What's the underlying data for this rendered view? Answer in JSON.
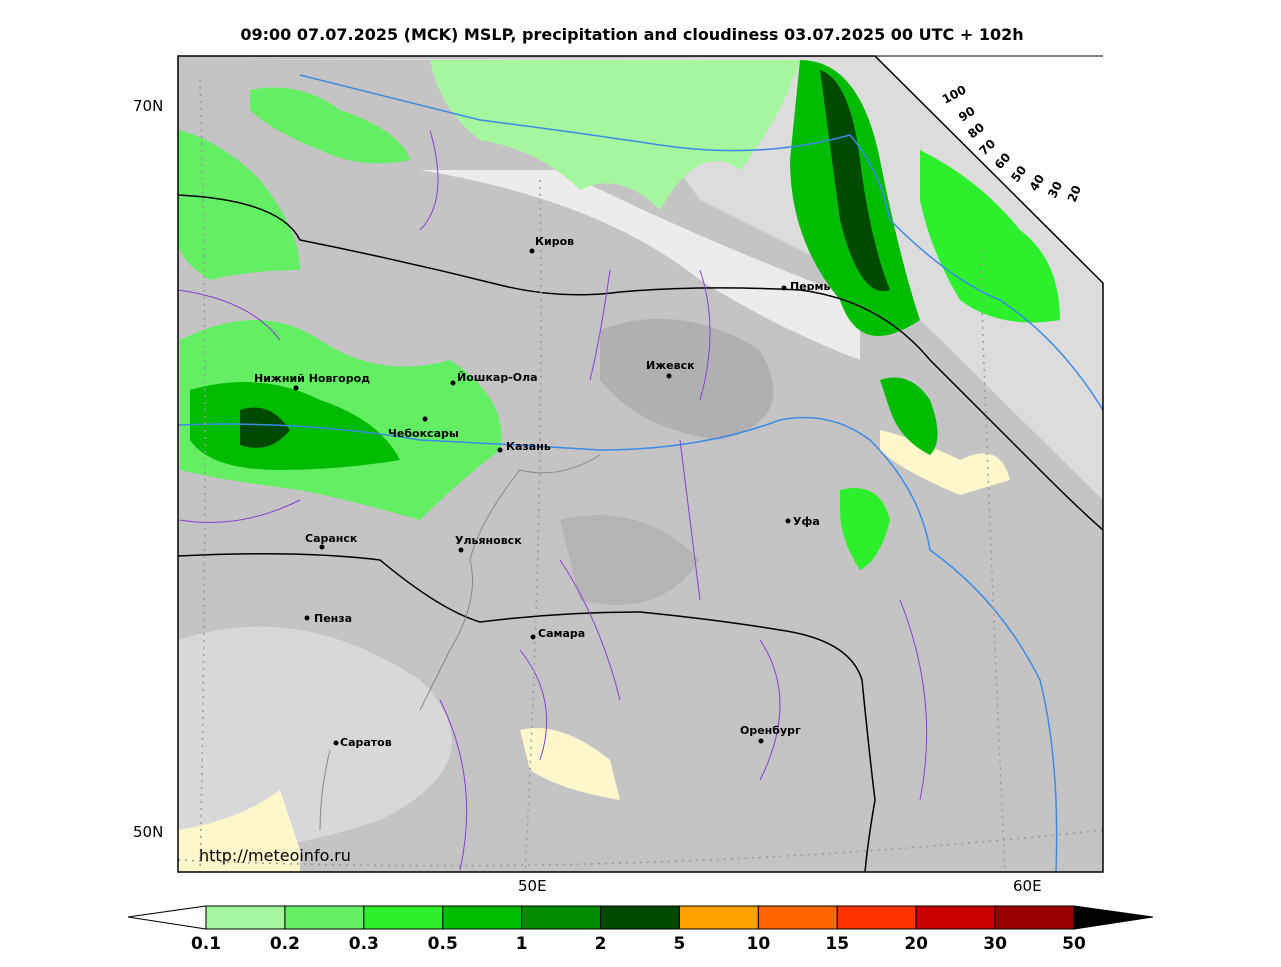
{
  "header": {
    "title": "09:00 07.07.2025 (MCK) MSLP, precipitation and cloudiness 03.07.2025 00 UTC + 102h"
  },
  "map": {
    "lat_labels": [
      "70N",
      "50N"
    ],
    "lon_labels": [
      "50E",
      "60E"
    ],
    "cities": [
      "Киров",
      "Пермь",
      "Нижний Новгород",
      "Йошкар-Ола",
      "Ижевск",
      "Чебоксары",
      "Казань",
      "Уфа",
      "Саранск",
      "Ульяновск",
      "Пенза",
      "Самара",
      "Оренбург",
      "Саратов"
    ],
    "url": "http://meteoinfo.ru"
  },
  "cloudiness_scale": {
    "labels": [
      100,
      90,
      80,
      70,
      60,
      50,
      40,
      30,
      20
    ]
  },
  "colorbar": {
    "ticks": [
      0.1,
      0.2,
      0.3,
      0.5,
      1,
      2,
      5,
      10,
      15,
      20,
      30,
      50
    ],
    "colors": [
      "#a6f6a0",
      "#64ee64",
      "#2cf02c",
      "#00bc00",
      "#008a00",
      "#004a00",
      "#ffa000",
      "#ff6400",
      "#ff3200",
      "#c80000",
      "#960000"
    ]
  }
}
